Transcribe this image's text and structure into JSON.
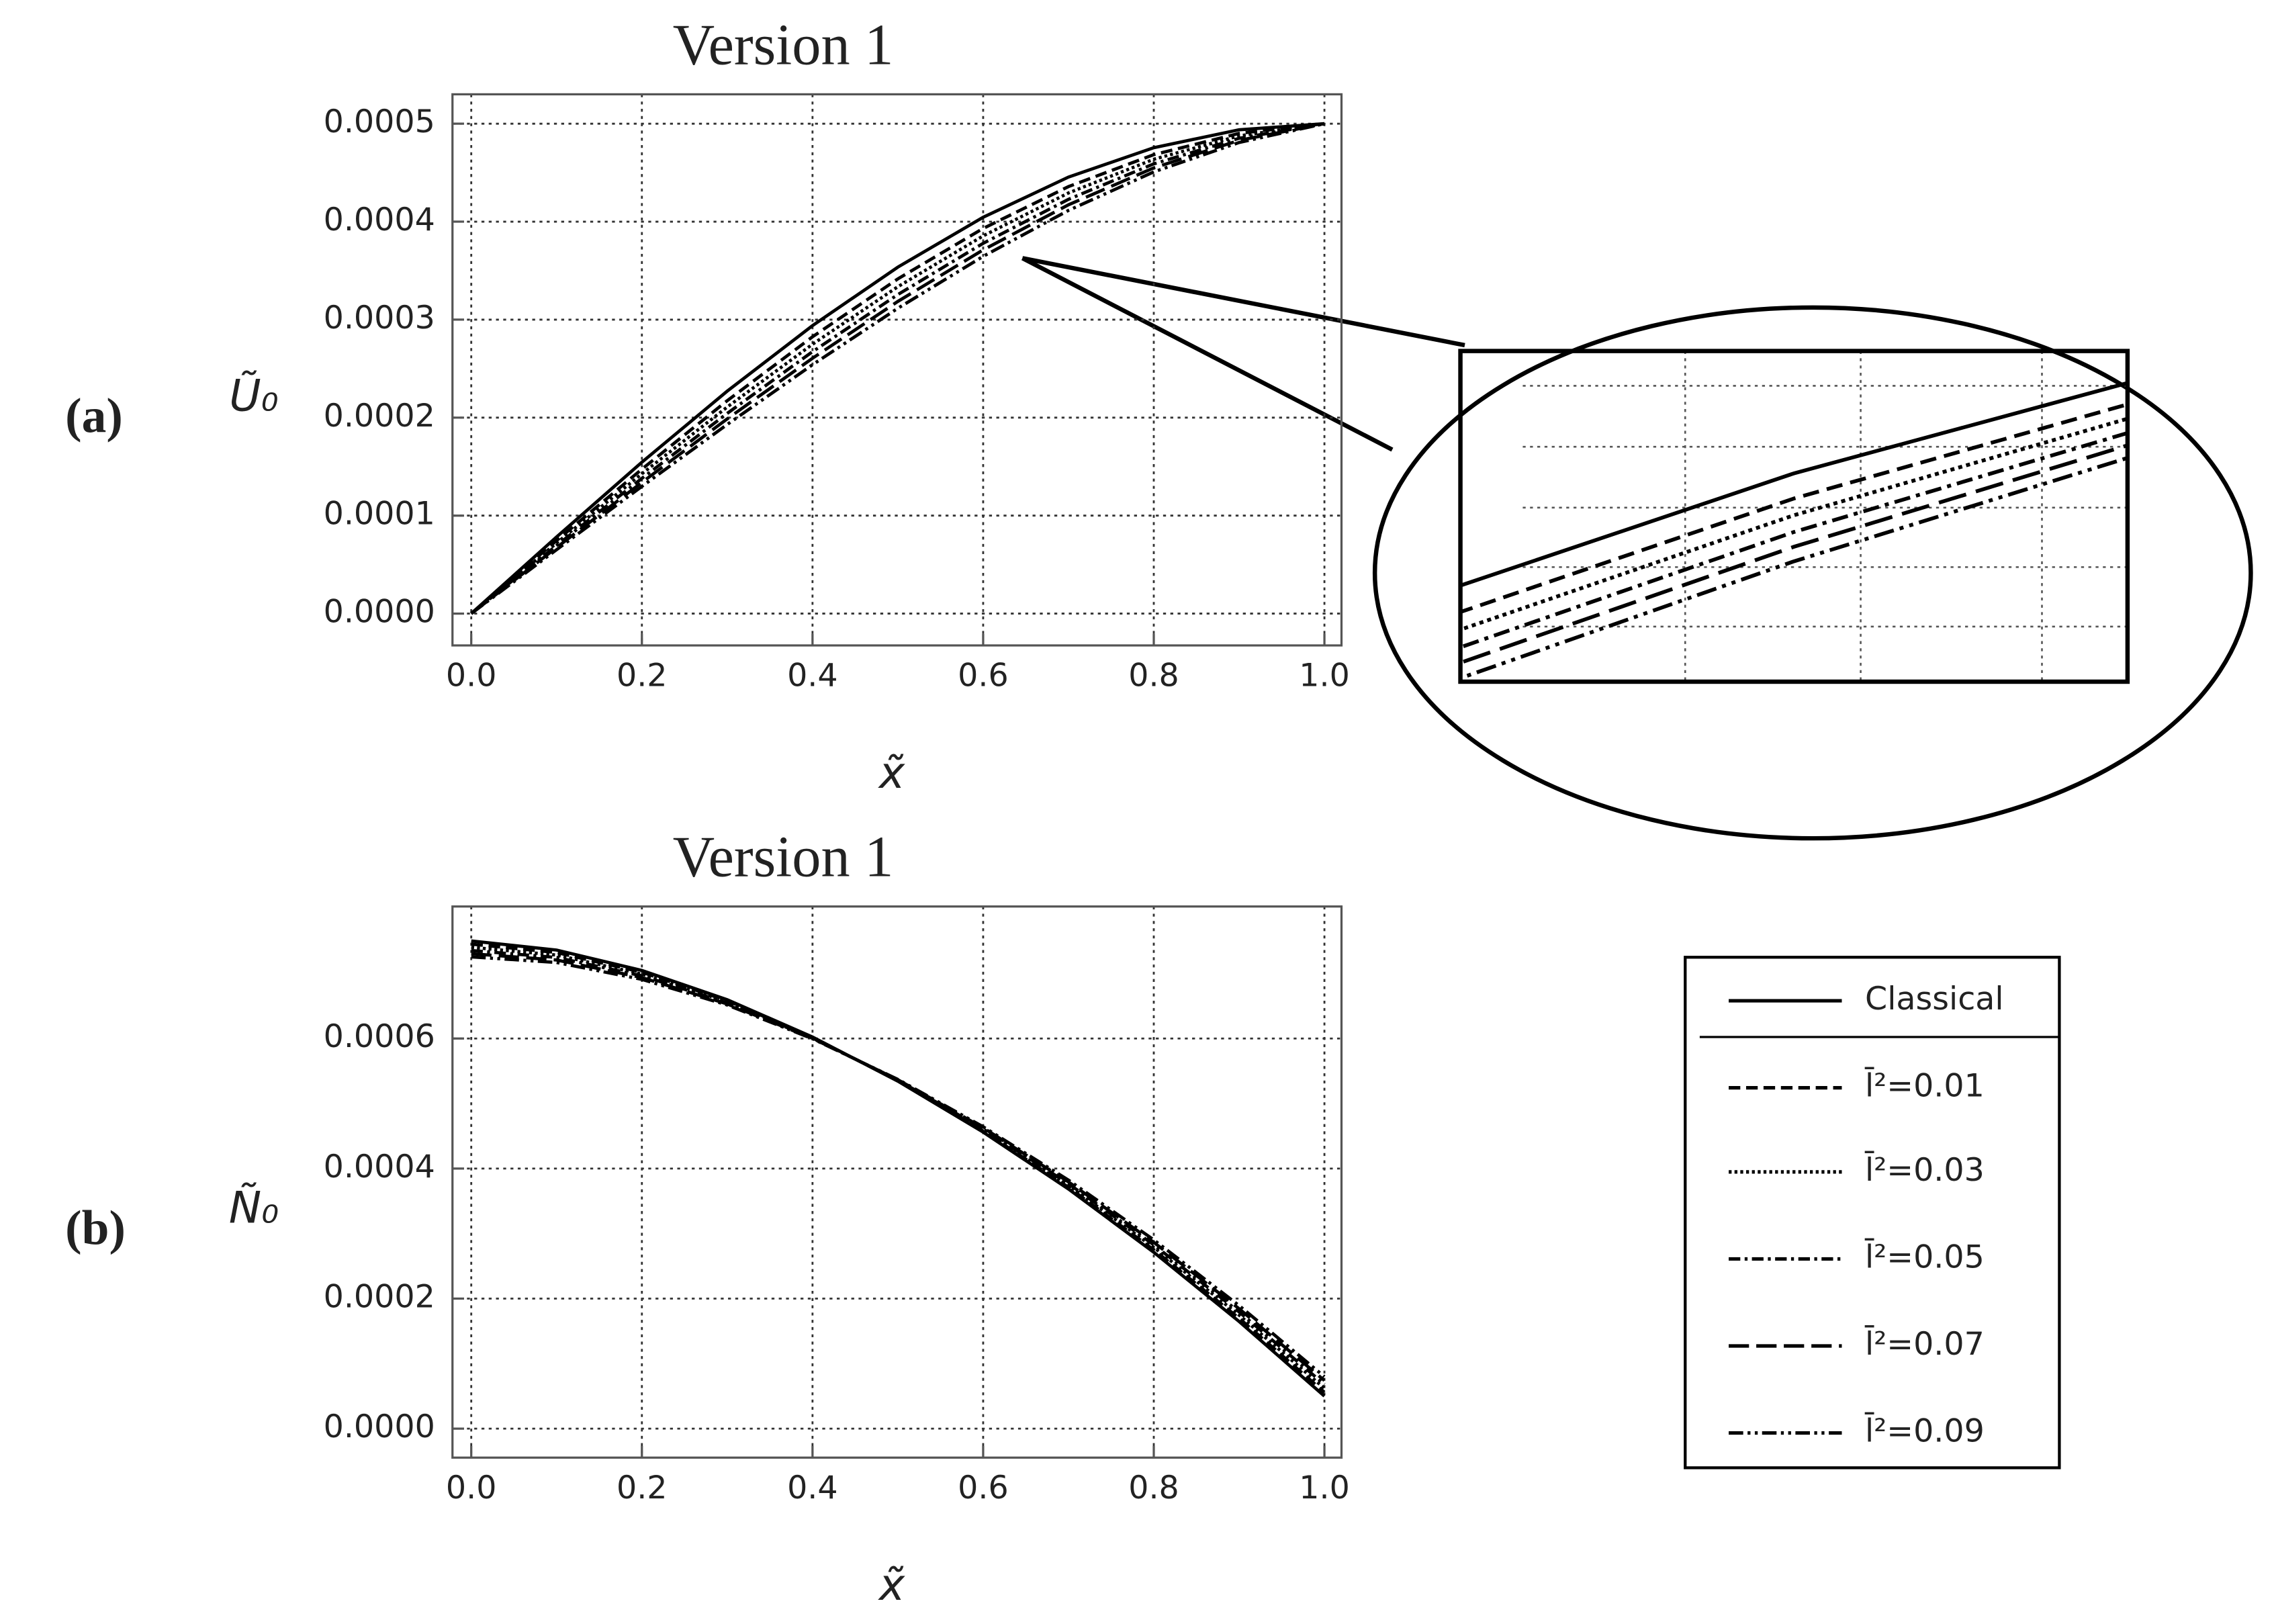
{
  "chart_data": [
    {
      "type": "line",
      "panel_label": "(a)",
      "title": "Version 1",
      "xlabel": "x̃",
      "ylabel": "Ũ₀",
      "x": [
        0,
        0.1,
        0.2,
        0.3,
        0.4,
        0.5,
        0.6,
        0.7,
        0.8,
        0.9,
        1
      ],
      "series": [
        {
          "color": "#000000",
          "dash": "none",
          "values": [
            0,
            7.82e-05,
            0.0001545,
            0.000227,
            0.0002939,
            0.0003536,
            0.0004045,
            0.0004455,
            0.0004755,
            0.0004938,
            0.0005
          ]
        },
        {
          "color": "#000000",
          "dash": "8,4",
          "values": [
            0,
            7.45e-05,
            0.0001474,
            0.0002173,
            0.0002825,
            0.0003416,
            0.0003931,
            0.0004358,
            0.0004684,
            0.0004901,
            0.0005
          ]
        },
        {
          "color": "#000000",
          "dash": "2,2",
          "values": [
            0,
            7.2e-05,
            0.0001427,
            0.0002108,
            0.0002749,
            0.0003336,
            0.0003855,
            0.0004293,
            0.0004637,
            0.0004876,
            0.0005
          ]
        },
        {
          "color": "#000000",
          "dash": "8,3,2,3",
          "values": [
            0,
            6.95e-05,
            0.000138,
            0.0002043,
            0.0002673,
            0.0003256,
            0.0003779,
            0.0004228,
            0.000459,
            0.0004851,
            0.0005
          ]
        },
        {
          "color": "#000000",
          "dash": "14,5",
          "values": [
            0,
            6.74e-05,
            0.0001339,
            0.0001987,
            0.0002606,
            0.0003186,
            0.0003712,
            0.0004172,
            0.0004549,
            0.000483,
            0.0005
          ]
        },
        {
          "color": "#000000",
          "dash": "10,3,2,3,2,3",
          "values": [
            0,
            6.52e-05,
            0.0001298,
            0.000193,
            0.000254,
            0.0003116,
            0.0003646,
            0.0004115,
            0.0004508,
            0.0004808,
            0.0005
          ]
        }
      ],
      "xlim": [
        -0.022,
        1.02
      ],
      "ylim": [
        -3.25e-05,
        0.00053
      ],
      "xticks": [
        {
          "value": 0,
          "label": "0.0"
        },
        0.2,
        0.4,
        0.6,
        0.8,
        {
          "value": 1,
          "label": "1.0"
        }
      ],
      "yticks": [
        {
          "value": 0,
          "label": "0.0000"
        },
        {
          "value": 0.0001,
          "label": "0.0001"
        },
        {
          "value": 0.0002,
          "label": "0.0002"
        },
        {
          "value": 0.0003,
          "label": "0.0003"
        },
        {
          "value": 0.0004,
          "label": "0.0004"
        },
        {
          "value": 0.0005,
          "label": "0.0005"
        }
      ],
      "grid": true,
      "inset": {
        "xlim": [
          0.5,
          0.7
        ],
        "ylim": [
          0.00031,
          0.00046
        ]
      }
    },
    {
      "type": "line",
      "panel_label": "(b)",
      "title": "Version 1",
      "xlabel": "x̃",
      "ylabel": "Ñ₀",
      "x": [
        0,
        0.1,
        0.2,
        0.3,
        0.4,
        0.5,
        0.6,
        0.7,
        0.8,
        0.9,
        1
      ],
      "series": [
        {
          "name": "Classical",
          "color": "#000000",
          "dash": "none",
          "values": [
            0.00075,
            0.000736,
            0.0007046,
            0.0006597,
            0.0006023,
            0.0005344,
            0.000456,
            0.0003685,
            0.0002712,
            0.0001648,
            5e-05
          ]
        },
        {
          "name": "l̄²=0.01",
          "color": "#000000",
          "dash": "8,4",
          "values": [
            0.0007451,
            0.0007322,
            0.0007019,
            0.0006581,
            0.0006018,
            0.0005349,
            0.0004576,
            0.0003712,
            0.000275,
            0.0001697,
            5.6e-05
          ]
        },
        {
          "name": "l̄²=0.03",
          "color": "#000000",
          "dash": "2,2",
          "values": [
            0.0007402,
            0.0007284,
            0.0006991,
            0.0006564,
            0.0006012,
            0.0005355,
            0.0004593,
            0.000374,
            0.0002788,
            0.0001746,
            6.2e-05
          ]
        },
        {
          "name": "l̄²=0.05",
          "color": "#000000",
          "dash": "8,3,2,3",
          "values": [
            0.0007353,
            0.0007246,
            0.0006964,
            0.0006548,
            0.0006007,
            0.000536,
            0.0004609,
            0.0003767,
            0.0002826,
            0.0001795,
            6.8e-05
          ]
        },
        {
          "name": "l̄²=0.07",
          "color": "#000000",
          "dash": "14,5",
          "values": [
            0.0007304,
            0.0007207,
            0.0006937,
            0.0006531,
            0.0006001,
            0.0005366,
            0.0004626,
            0.0003794,
            0.0002865,
            0.0001844,
            7.4e-05
          ]
        },
        {
          "name": "l̄²=0.09",
          "color": "#000000",
          "dash": "10,3,2,3,2,3",
          "values": [
            0.0007255,
            0.0007169,
            0.0006909,
            0.0006515,
            0.0005996,
            0.0005371,
            0.0004642,
            0.0003822,
            0.0002903,
            0.0001893,
            8e-05
          ]
        }
      ],
      "xlim": [
        -0.022,
        1.02
      ],
      "ylim": [
        -4.46e-05,
        0.000803
      ],
      "xticks": [
        {
          "value": 0,
          "label": "0.0"
        },
        0.2,
        0.4,
        0.6,
        0.8,
        {
          "value": 1,
          "label": "1.0"
        }
      ],
      "yticks": [
        {
          "value": 0,
          "label": "0.0000"
        },
        {
          "value": 0.0002,
          "label": "0.0002"
        },
        {
          "value": 0.0004,
          "label": "0.0004"
        },
        {
          "value": 0.0006,
          "label": "0.0006"
        }
      ],
      "grid": true,
      "legend": "right"
    }
  ]
}
